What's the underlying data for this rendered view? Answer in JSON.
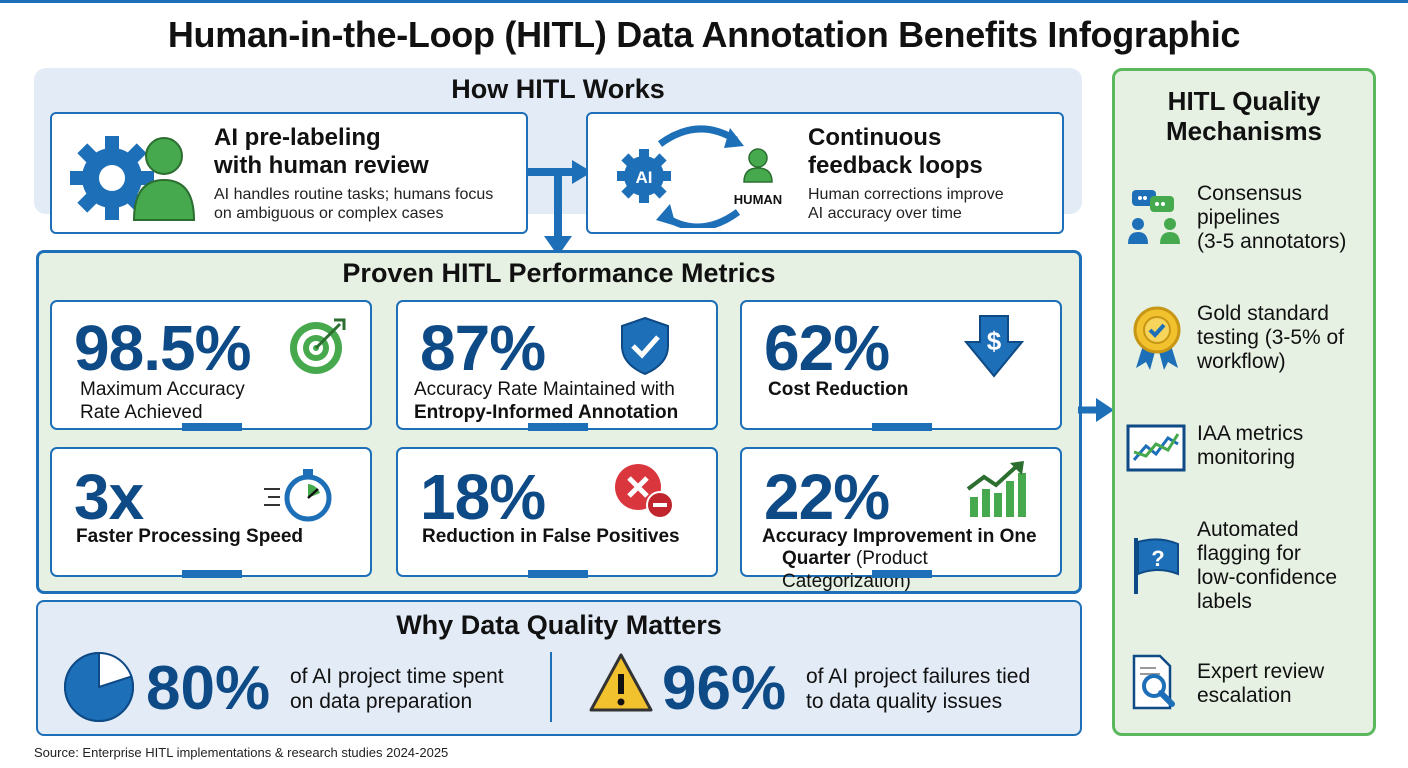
{
  "title": "Human-in-the-Loop (HITL) Data Annotation Benefits Infographic",
  "how_hitl": {
    "title": "How HITL Works",
    "cards": [
      {
        "heading_line1": "AI pre-labeling",
        "heading_line2": "with human review",
        "text_line1": "AI handles routine tasks; humans focus",
        "text_line2": "on ambiguous or complex cases"
      },
      {
        "heading_line1": "Continuous",
        "heading_line2": "feedback loops",
        "text_line1": "Human corrections improve",
        "text_line2": "AI accuracy over time",
        "icon_ai": "AI",
        "icon_human": "HUMAN"
      }
    ]
  },
  "metrics": {
    "title": "Proven HITL Performance Metrics",
    "items": [
      {
        "value": "98.5%",
        "label_line1": "Maximum Accuracy",
        "label_line2": "Rate Achieved",
        "icon": "target-icon"
      },
      {
        "value": "87%",
        "label_line1": "Accuracy Rate Maintained with",
        "label_line2": "Entropy-Informed Annotation",
        "icon": "shield-check-icon"
      },
      {
        "value": "62%",
        "label_line1": "Cost Reduction",
        "label_line2": "",
        "icon": "dollar-down-icon"
      },
      {
        "value": "3x",
        "label_line1": "Faster Processing Speed",
        "label_line2": "",
        "icon": "stopwatch-icon"
      },
      {
        "value": "18%",
        "label_line1": "Reduction in False Positives",
        "label_line2": "",
        "icon": "error-minus-icon"
      },
      {
        "value": "22%",
        "label_line1": "Accuracy Improvement in One",
        "label_line2a": "Quarter",
        "label_line2b": " (Product Categorization)",
        "icon": "growth-chart-icon"
      }
    ]
  },
  "why_quality": {
    "title": "Why Data Quality Matters",
    "stat1": {
      "value": "80%",
      "text_line1": "of AI project time spent",
      "text_line2": "on data preparation",
      "fraction": 0.8
    },
    "stat2": {
      "value": "96%",
      "text_line1": "of AI project failures tied",
      "text_line2": "to data quality issues"
    }
  },
  "quality_mechanisms": {
    "title_line1": "HITL Quality",
    "title_line2": "Mechanisms",
    "items": [
      {
        "lines": [
          "Consensus",
          "pipelines",
          "(3-5 annotators)"
        ],
        "icon": "consensus-icon"
      },
      {
        "lines": [
          "Gold standard",
          "testing (3-5% of",
          "workflow)"
        ],
        "icon": "gold-badge-icon"
      },
      {
        "lines": [
          "IAA metrics",
          "monitoring"
        ],
        "icon": "line-chart-icon"
      },
      {
        "lines": [
          "Automated",
          "flagging for",
          "low-confidence",
          "labels"
        ],
        "icon": "flag-question-icon"
      },
      {
        "lines": [
          "Expert review",
          "escalation"
        ],
        "icon": "document-search-icon"
      }
    ]
  },
  "source": "Source: Enterprise HITL implementations & research studies 2024-2025",
  "colors": {
    "blue": "#1d6fb8",
    "navy": "#0e4a86",
    "green": "#3ea54a",
    "light_green": "#e6f1e3",
    "light_blue": "#e3ecf6"
  }
}
